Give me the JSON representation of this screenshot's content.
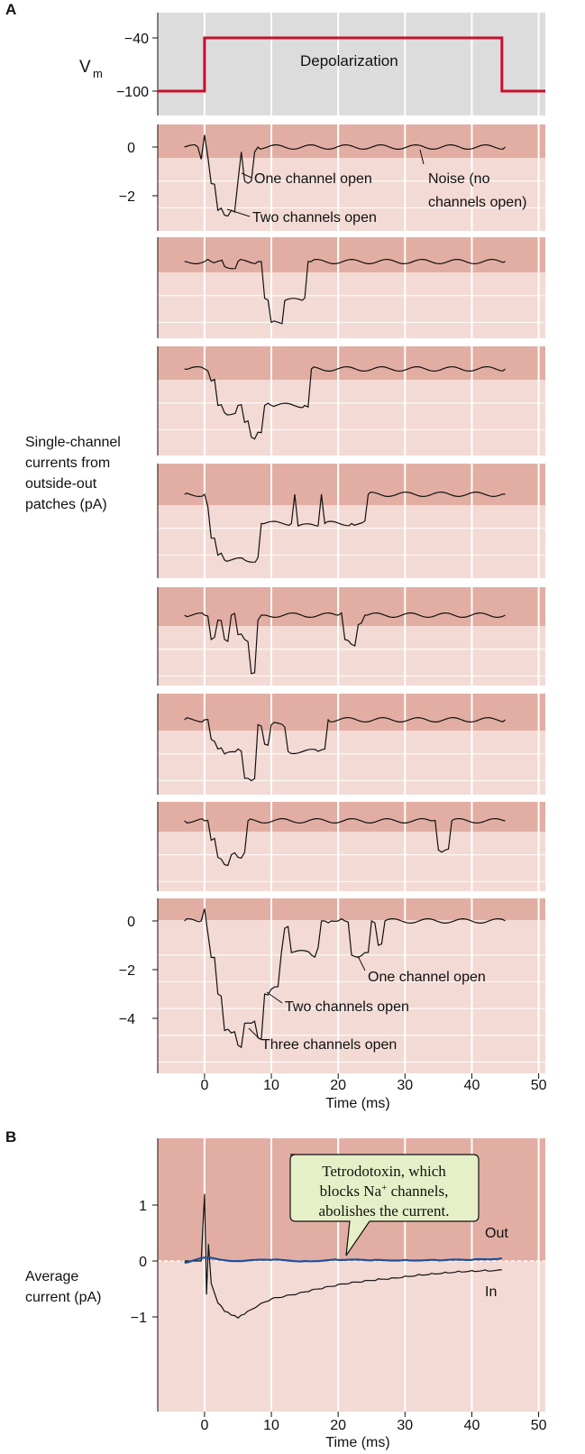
{
  "panel_a": {
    "letter": "A",
    "vm_label": "V",
    "vm_subscript": "m",
    "depolarization_label": "Depolarization",
    "single_channel_ylabel": [
      "Single-channel",
      "currents from",
      "outside-out",
      "patches (pA)"
    ],
    "trace1_annotations": {
      "one_channel": "One channel open",
      "two_channels": "Two channels open",
      "noise_line1": "Noise (no",
      "noise_line2": "channels open)"
    },
    "trace8_annotations": {
      "one_channel": "One channel open",
      "two_channels": "Two channels open",
      "three_channels": "Three channels open"
    },
    "xlabel": "Time (ms)"
  },
  "panel_b": {
    "letter": "B",
    "ylabel": [
      "Average",
      "current (pA)"
    ],
    "callout_line1": "Tetrodotoxin, which",
    "callout_line2_pre": "blocks Na",
    "callout_line2_sup": "+",
    "callout_line2_post": " channels,",
    "callout_line3": "abolishes the current.",
    "out_label": "Out",
    "in_label": "In",
    "xlabel": "Time (ms)"
  },
  "colors": {
    "plot_bg": "#f3dad5",
    "band": "#e2aea3",
    "vm_bg": "#dcdcdc",
    "vm_line": "#c8102e",
    "trace": "#111111",
    "ttx_trace": "#1f4e9c",
    "callout_bg": "#e6f0c8"
  },
  "chart_data": [
    {
      "type": "line",
      "name": "Vm step",
      "x": [
        -7,
        0,
        0,
        44.5,
        44.5,
        51
      ],
      "y": [
        -100,
        -100,
        -40,
        -40,
        -100,
        -100
      ],
      "yticks": [
        -40,
        -100
      ],
      "xlim": [
        -7,
        51
      ],
      "ylabel": "Vm"
    },
    {
      "type": "line",
      "name": "Single-channel currents",
      "xlabel": "Time (ms)",
      "xticks": [
        0,
        10,
        20,
        30,
        40,
        50
      ],
      "xlim": [
        -7,
        51
      ],
      "yticks_first_trace": [
        0,
        -2
      ],
      "yticks_last_trace": [
        0,
        -2,
        -4
      ],
      "traces": [
        {
          "t": [
            -3,
            -1,
            -0.5,
            0,
            0.5,
            1,
            2,
            3,
            4,
            5,
            5.5,
            6,
            7,
            7.5,
            8,
            45
          ],
          "i": [
            0,
            0,
            -0.5,
            0.5,
            -0.4,
            -1.5,
            -2.6,
            -2.8,
            -2.6,
            -1.4,
            -0.2,
            -1.4,
            -1.4,
            -0.2,
            0,
            0
          ]
        },
        {
          "t": [
            -3,
            0,
            1,
            3,
            5,
            8,
            9,
            10,
            12,
            15,
            15.5,
            16,
            45
          ],
          "i": [
            0,
            0,
            0,
            -0.2,
            0,
            0,
            -1.5,
            -2.5,
            -1.6,
            -1.5,
            0,
            0,
            0
          ]
        },
        {
          "t": [
            -3,
            0,
            1,
            2,
            3,
            5,
            6,
            7,
            8,
            9,
            10,
            15,
            16,
            45
          ],
          "i": [
            0,
            0,
            -0.5,
            -1.5,
            -1.8,
            -1.5,
            -2.2,
            -2.8,
            -2.6,
            -1.5,
            -1.5,
            -1.5,
            0,
            0
          ]
        },
        {
          "t": [
            -3,
            0,
            0.5,
            1,
            2,
            3,
            6,
            8,
            8.5,
            13,
            13.5,
            14,
            17,
            17.5,
            18,
            22,
            24,
            24.5,
            45
          ],
          "i": [
            0,
            0,
            -0.5,
            -1.8,
            -2.5,
            -2.7,
            -2.7,
            -2.6,
            -1.2,
            -1.2,
            0,
            -1.3,
            -1.3,
            0,
            -1.2,
            -1.2,
            -1.1,
            0,
            0
          ]
        },
        {
          "t": [
            -3,
            0,
            1,
            2,
            3,
            4,
            5,
            6,
            7,
            8,
            8.5,
            9,
            20,
            21,
            22,
            23,
            24,
            45
          ],
          "i": [
            0,
            0,
            -1,
            -0.2,
            -1,
            0,
            -0.8,
            -1,
            -2.4,
            -0.2,
            0,
            0,
            0,
            -1,
            -1.2,
            -0.4,
            0,
            0
          ]
        },
        {
          "t": [
            -3,
            0,
            1,
            2,
            3,
            5,
            6,
            7,
            8,
            9,
            10,
            12,
            12.5,
            17,
            18,
            18.5,
            45
          ],
          "i": [
            0,
            0,
            -0.8,
            -1.2,
            -1.4,
            -1.2,
            -2.4,
            -2.5,
            -0.2,
            -1,
            -0.2,
            -0.3,
            -1.3,
            -1.3,
            -1.2,
            0,
            0
          ]
        },
        {
          "t": [
            -3,
            0,
            1,
            2,
            3,
            4,
            5,
            6,
            6.5,
            34,
            35,
            36,
            37,
            45
          ],
          "i": [
            0,
            0,
            -0.8,
            -1.5,
            -1.8,
            -1.4,
            -1.5,
            -1.3,
            0,
            0,
            -1.2,
            -1.2,
            0,
            0
          ]
        },
        {
          "t": [
            -3,
            -0.5,
            0,
            0.5,
            1,
            2,
            3,
            4,
            5,
            6,
            7,
            8,
            9,
            10,
            11,
            11.5,
            12,
            13,
            16,
            17,
            17.5,
            18,
            19,
            20,
            21,
            22,
            23,
            24,
            25,
            26,
            27,
            45
          ],
          "i": [
            0,
            0,
            0.5,
            -0.5,
            -1.5,
            -3.0,
            -4.5,
            -4.6,
            -5.1,
            -4.2,
            -4.2,
            -4.8,
            -3.0,
            -2.8,
            -2.7,
            -1.3,
            -0.3,
            -1.3,
            -1.4,
            -1.1,
            0,
            0,
            0,
            0,
            0,
            -1.4,
            -1.5,
            -1.3,
            0,
            -1.0,
            0,
            0
          ]
        }
      ]
    },
    {
      "type": "line",
      "name": "Average current",
      "xlabel": "Time (ms)",
      "xticks": [
        0,
        10,
        20,
        30,
        40,
        50
      ],
      "xlim": [
        -7,
        51
      ],
      "yticks": [
        1,
        0,
        -1
      ],
      "ylim": [
        -1.7,
        1.7
      ],
      "series": [
        {
          "name": "In",
          "x": [
            -3,
            -0.5,
            0,
            0.3,
            0.6,
            1,
            2,
            3,
            4,
            5,
            6,
            8,
            10,
            12,
            14,
            16,
            18,
            20,
            22,
            24,
            26,
            28,
            30,
            32,
            34,
            36,
            38,
            40,
            42,
            44.5
          ],
          "y": [
            0,
            0,
            1.2,
            -0.6,
            0.3,
            -0.4,
            -0.75,
            -0.9,
            -0.97,
            -1.02,
            -0.95,
            -0.8,
            -0.68,
            -0.63,
            -0.58,
            -0.52,
            -0.47,
            -0.42,
            -0.38,
            -0.35,
            -0.32,
            -0.3,
            -0.27,
            -0.24,
            -0.22,
            -0.2,
            -0.18,
            -0.17,
            -0.16,
            -0.16
          ]
        },
        {
          "name": "Tetrodotoxin",
          "x": [
            -3,
            0,
            2,
            5,
            10,
            15,
            20,
            25,
            30,
            35,
            40,
            44.5
          ],
          "y": [
            -0.03,
            0.06,
            0.03,
            0,
            0.02,
            0,
            0.02,
            0.01,
            0.02,
            0.01,
            0.02,
            0.05
          ]
        }
      ]
    }
  ]
}
